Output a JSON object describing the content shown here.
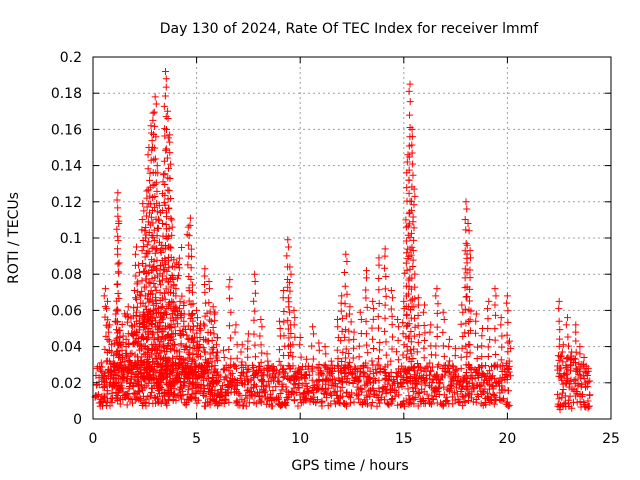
{
  "chart_data": {
    "type": "scatter",
    "title": "Day 130 of 2024, Rate Of TEC Index for receiver lmmf",
    "xlabel": "GPS time / hours",
    "ylabel": "ROTI / TECUs",
    "xlim": [
      0,
      25
    ],
    "ylim": [
      0,
      0.2
    ],
    "xticks": [
      {
        "value": 0,
        "label": "0"
      },
      {
        "value": 5,
        "label": "5"
      },
      {
        "value": 10,
        "label": "10"
      },
      {
        "value": 15,
        "label": "15"
      },
      {
        "value": 20,
        "label": "20"
      },
      {
        "value": 25,
        "label": "25"
      }
    ],
    "yticks": [
      {
        "value": 0,
        "label": "0"
      },
      {
        "value": 0.02,
        "label": "0.02"
      },
      {
        "value": 0.04,
        "label": "0.04"
      },
      {
        "value": 0.06,
        "label": "0.06"
      },
      {
        "value": 0.08,
        "label": "0.08"
      },
      {
        "value": 0.1,
        "label": "0.1"
      },
      {
        "value": 0.12,
        "label": "0.12"
      },
      {
        "value": 0.14,
        "label": "0.14"
      },
      {
        "value": 0.16,
        "label": "0.16"
      },
      {
        "value": 0.18,
        "label": "0.18"
      },
      {
        "value": 0.2,
        "label": "0.2"
      }
    ],
    "grid": true,
    "marker": "+",
    "color": "#ff0000",
    "series": [
      {
        "name": "ROTI",
        "points": [
          [
            0.1,
            0.012
          ],
          [
            0.2,
            0.028
          ],
          [
            0.3,
            0.019
          ],
          [
            0.4,
            0.031
          ],
          [
            0.5,
            0.022
          ],
          [
            0.6,
            0.072
          ],
          [
            0.7,
            0.065
          ],
          [
            0.8,
            0.052
          ],
          [
            0.9,
            0.041
          ],
          [
            1.0,
            0.035
          ],
          [
            1.1,
            0.058
          ],
          [
            1.2,
            0.112
          ],
          [
            1.2,
            0.125
          ],
          [
            1.3,
            0.049
          ],
          [
            1.4,
            0.038
          ],
          [
            1.5,
            0.027
          ],
          [
            1.6,
            0.044
          ],
          [
            1.7,
            0.062
          ],
          [
            1.8,
            0.036
          ],
          [
            1.9,
            0.051
          ],
          [
            2.0,
            0.071
          ],
          [
            2.1,
            0.095
          ],
          [
            2.2,
            0.085
          ],
          [
            2.3,
            0.068
          ],
          [
            2.4,
            0.119
          ],
          [
            2.5,
            0.104
          ],
          [
            2.6,
            0.126
          ],
          [
            2.7,
            0.15
          ],
          [
            2.8,
            0.162
          ],
          [
            2.9,
            0.169
          ],
          [
            3.0,
            0.178
          ],
          [
            3.1,
            0.14
          ],
          [
            3.2,
            0.118
          ],
          [
            3.3,
            0.096
          ],
          [
            3.4,
            0.135
          ],
          [
            3.5,
            0.192
          ],
          [
            3.6,
            0.17
          ],
          [
            3.7,
            0.157
          ],
          [
            3.8,
            0.11
          ],
          [
            3.9,
            0.088
          ],
          [
            4.0,
            0.072
          ],
          [
            4.2,
            0.065
          ],
          [
            4.4,
            0.058
          ],
          [
            4.6,
            0.106
          ],
          [
            4.7,
            0.111
          ],
          [
            4.8,
            0.074
          ],
          [
            5.0,
            0.06
          ],
          [
            5.2,
            0.049
          ],
          [
            5.4,
            0.083
          ],
          [
            5.6,
            0.076
          ],
          [
            5.8,
            0.062
          ],
          [
            6.0,
            0.045
          ],
          [
            6.3,
            0.038
          ],
          [
            6.6,
            0.077
          ],
          [
            6.9,
            0.052
          ],
          [
            7.2,
            0.041
          ],
          [
            7.5,
            0.047
          ],
          [
            7.8,
            0.08
          ],
          [
            8.1,
            0.055
          ],
          [
            8.4,
            0.036
          ],
          [
            8.7,
            0.029
          ],
          [
            9.0,
            0.054
          ],
          [
            9.2,
            0.071
          ],
          [
            9.4,
            0.099
          ],
          [
            9.5,
            0.084
          ],
          [
            9.7,
            0.06
          ],
          [
            10.0,
            0.045
          ],
          [
            10.3,
            0.033
          ],
          [
            10.6,
            0.051
          ],
          [
            10.9,
            0.042
          ],
          [
            11.2,
            0.04
          ],
          [
            11.5,
            0.032
          ],
          [
            11.8,
            0.055
          ],
          [
            12.0,
            0.068
          ],
          [
            12.2,
            0.091
          ],
          [
            12.4,
            0.062
          ],
          [
            12.6,
            0.048
          ],
          [
            12.9,
            0.059
          ],
          [
            13.2,
            0.082
          ],
          [
            13.5,
            0.065
          ],
          [
            13.8,
            0.089
          ],
          [
            14.1,
            0.094
          ],
          [
            14.4,
            0.071
          ],
          [
            14.7,
            0.055
          ],
          [
            15.0,
            0.065
          ],
          [
            15.1,
            0.11
          ],
          [
            15.2,
            0.146
          ],
          [
            15.3,
            0.185
          ],
          [
            15.4,
            0.16
          ],
          [
            15.5,
            0.127
          ],
          [
            15.7,
            0.067
          ],
          [
            16.0,
            0.063
          ],
          [
            16.3,
            0.052
          ],
          [
            16.6,
            0.072
          ],
          [
            16.9,
            0.059
          ],
          [
            17.2,
            0.044
          ],
          [
            17.5,
            0.039
          ],
          [
            17.8,
            0.063
          ],
          [
            18.0,
            0.12
          ],
          [
            18.1,
            0.108
          ],
          [
            18.2,
            0.093
          ],
          [
            18.5,
            0.058
          ],
          [
            18.8,
            0.05
          ],
          [
            19.1,
            0.065
          ],
          [
            19.4,
            0.072
          ],
          [
            19.7,
            0.056
          ],
          [
            20.0,
            0.068
          ],
          [
            20.1,
            0.043
          ],
          [
            22.5,
            0.065
          ],
          [
            22.7,
            0.041
          ],
          [
            22.9,
            0.056
          ],
          [
            23.1,
            0.037
          ],
          [
            23.3,
            0.052
          ],
          [
            23.5,
            0.04
          ],
          [
            23.7,
            0.034
          ],
          [
            23.9,
            0.028
          ]
        ],
        "bands": [
          {
            "x": [
              0.1,
              20.1
            ],
            "y": [
              0.007,
              0.03
            ],
            "step": 0.05
          },
          {
            "x": [
              1.0,
              6.0
            ],
            "y": [
              0.01,
              0.06
            ],
            "step": 0.06
          },
          {
            "x": [
              2.4,
              4.4
            ],
            "y": [
              0.02,
              0.095
            ],
            "step": 0.07
          },
          {
            "x": [
              22.4,
              24.0
            ],
            "y": [
              0.005,
              0.035
            ],
            "step": 0.05
          }
        ]
      }
    ]
  }
}
